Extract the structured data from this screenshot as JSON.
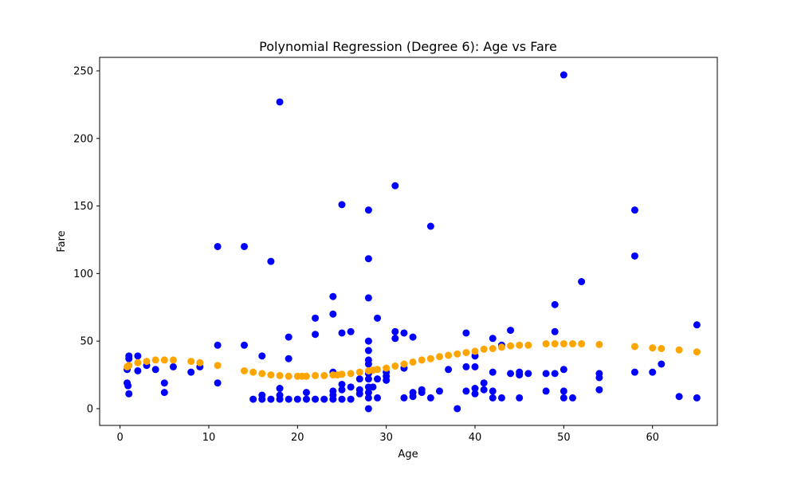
{
  "chart_data": {
    "type": "scatter",
    "title": "Polynomial Regression (Degree 6): Age vs Fare",
    "xlabel": "Age",
    "ylabel": "Fare",
    "xlim": [
      -2.3,
      67.3
    ],
    "ylim": [
      -12.4,
      260
    ],
    "xticks": [
      0,
      10,
      20,
      30,
      40,
      50,
      60
    ],
    "yticks": [
      0,
      50,
      100,
      150,
      200,
      250
    ],
    "grid": false,
    "series": [
      {
        "color": "#0000ff",
        "points": [
          [
            0.8,
            29
          ],
          [
            0.8,
            19
          ],
          [
            0.9,
            17
          ],
          [
            1,
            11
          ],
          [
            1,
            37
          ],
          [
            1,
            39
          ],
          [
            2,
            39
          ],
          [
            2,
            28
          ],
          [
            3,
            32
          ],
          [
            4,
            29
          ],
          [
            5,
            19
          ],
          [
            5,
            12
          ],
          [
            6,
            31
          ],
          [
            8,
            27
          ],
          [
            9,
            31
          ],
          [
            11,
            120
          ],
          [
            11,
            47
          ],
          [
            11,
            19
          ],
          [
            14,
            120
          ],
          [
            14,
            47
          ],
          [
            15,
            7
          ],
          [
            16,
            39
          ],
          [
            16,
            10
          ],
          [
            16,
            7
          ],
          [
            17,
            109
          ],
          [
            17,
            7
          ],
          [
            18,
            227
          ],
          [
            18,
            15
          ],
          [
            18,
            10
          ],
          [
            18,
            7
          ],
          [
            19,
            53
          ],
          [
            19,
            37
          ],
          [
            19,
            7
          ],
          [
            20,
            7
          ],
          [
            21,
            12
          ],
          [
            21,
            7
          ],
          [
            22,
            67
          ],
          [
            22,
            55
          ],
          [
            22,
            7
          ],
          [
            23,
            7
          ],
          [
            24,
            83
          ],
          [
            24,
            70
          ],
          [
            24,
            27
          ],
          [
            24,
            13
          ],
          [
            24,
            10
          ],
          [
            24,
            7
          ],
          [
            25,
            151
          ],
          [
            25,
            56
          ],
          [
            25,
            18
          ],
          [
            25,
            14
          ],
          [
            25,
            7
          ],
          [
            26,
            57
          ],
          [
            26,
            16
          ],
          [
            26,
            7
          ],
          [
            27,
            22
          ],
          [
            27,
            14
          ],
          [
            27,
            11
          ],
          [
            28,
            147
          ],
          [
            28,
            111
          ],
          [
            28,
            82
          ],
          [
            28,
            50
          ],
          [
            28,
            43
          ],
          [
            28,
            36
          ],
          [
            28,
            33
          ],
          [
            28,
            26
          ],
          [
            28,
            22
          ],
          [
            28,
            16
          ],
          [
            28,
            12
          ],
          [
            28,
            8
          ],
          [
            28,
            0
          ],
          [
            28.5,
            16
          ],
          [
            29,
            67
          ],
          [
            29,
            22
          ],
          [
            29,
            8
          ],
          [
            30,
            27
          ],
          [
            30,
            24
          ],
          [
            30,
            21
          ],
          [
            31,
            165
          ],
          [
            31,
            57
          ],
          [
            31,
            52
          ],
          [
            32,
            56
          ],
          [
            32,
            30
          ],
          [
            32,
            8
          ],
          [
            33,
            53
          ],
          [
            33,
            12
          ],
          [
            33,
            9
          ],
          [
            34,
            14
          ],
          [
            34,
            12
          ],
          [
            35,
            135
          ],
          [
            35,
            8
          ],
          [
            36,
            13
          ],
          [
            37,
            29
          ],
          [
            38,
            0
          ],
          [
            39,
            56
          ],
          [
            39,
            31
          ],
          [
            39,
            13
          ],
          [
            40,
            39
          ],
          [
            40,
            31
          ],
          [
            40,
            15
          ],
          [
            40,
            11
          ],
          [
            41,
            19
          ],
          [
            41,
            14
          ],
          [
            42,
            52
          ],
          [
            42,
            27
          ],
          [
            42,
            13
          ],
          [
            42,
            8
          ],
          [
            43,
            47
          ],
          [
            43,
            8
          ],
          [
            44,
            58
          ],
          [
            44,
            26
          ],
          [
            45,
            27
          ],
          [
            45,
            25
          ],
          [
            45,
            8
          ],
          [
            46,
            26
          ],
          [
            48,
            26
          ],
          [
            48,
            13
          ],
          [
            49,
            77
          ],
          [
            49,
            57
          ],
          [
            49,
            26
          ],
          [
            50,
            247
          ],
          [
            50,
            29
          ],
          [
            50,
            13
          ],
          [
            50,
            8
          ],
          [
            51,
            8
          ],
          [
            52,
            94
          ],
          [
            54,
            26
          ],
          [
            54,
            23
          ],
          [
            54,
            14
          ],
          [
            58,
            147
          ],
          [
            58,
            113
          ],
          [
            58,
            27
          ],
          [
            60,
            27
          ],
          [
            61,
            33
          ],
          [
            63,
            9
          ],
          [
            65,
            62
          ],
          [
            65,
            8
          ]
        ]
      },
      {
        "color": "#ffa500",
        "points": [
          [
            0.8,
            31
          ],
          [
            1,
            32
          ],
          [
            2,
            34
          ],
          [
            3,
            35
          ],
          [
            4,
            36
          ],
          [
            5,
            36
          ],
          [
            6,
            36
          ],
          [
            8,
            35
          ],
          [
            9,
            34
          ],
          [
            11,
            32
          ],
          [
            14,
            28
          ],
          [
            15,
            27
          ],
          [
            16,
            26
          ],
          [
            17,
            25
          ],
          [
            18,
            24.5
          ],
          [
            19,
            24
          ],
          [
            20,
            24
          ],
          [
            20.5,
            24
          ],
          [
            21,
            24
          ],
          [
            22,
            24.5
          ],
          [
            23,
            24.5
          ],
          [
            24,
            25
          ],
          [
            24.5,
            25
          ],
          [
            25,
            25.5
          ],
          [
            26,
            26
          ],
          [
            27,
            27
          ],
          [
            28,
            28
          ],
          [
            28.5,
            28.5
          ],
          [
            29,
            29
          ],
          [
            30,
            30
          ],
          [
            31,
            31.5
          ],
          [
            32,
            33
          ],
          [
            33,
            34.5
          ],
          [
            34,
            36
          ],
          [
            35,
            37
          ],
          [
            36,
            38.5
          ],
          [
            37,
            39.5
          ],
          [
            38,
            40.5
          ],
          [
            39,
            41.5
          ],
          [
            40,
            42.5
          ],
          [
            41,
            44
          ],
          [
            42,
            44.5
          ],
          [
            43,
            45.5
          ],
          [
            44,
            46.5
          ],
          [
            45,
            47
          ],
          [
            46,
            47
          ],
          [
            48,
            48
          ],
          [
            49,
            48
          ],
          [
            50,
            48
          ],
          [
            51,
            48
          ],
          [
            52,
            48
          ],
          [
            54,
            47.5
          ],
          [
            58,
            46
          ],
          [
            60,
            45
          ],
          [
            61,
            44.5
          ],
          [
            63,
            43.5
          ],
          [
            65,
            42
          ]
        ]
      }
    ]
  }
}
